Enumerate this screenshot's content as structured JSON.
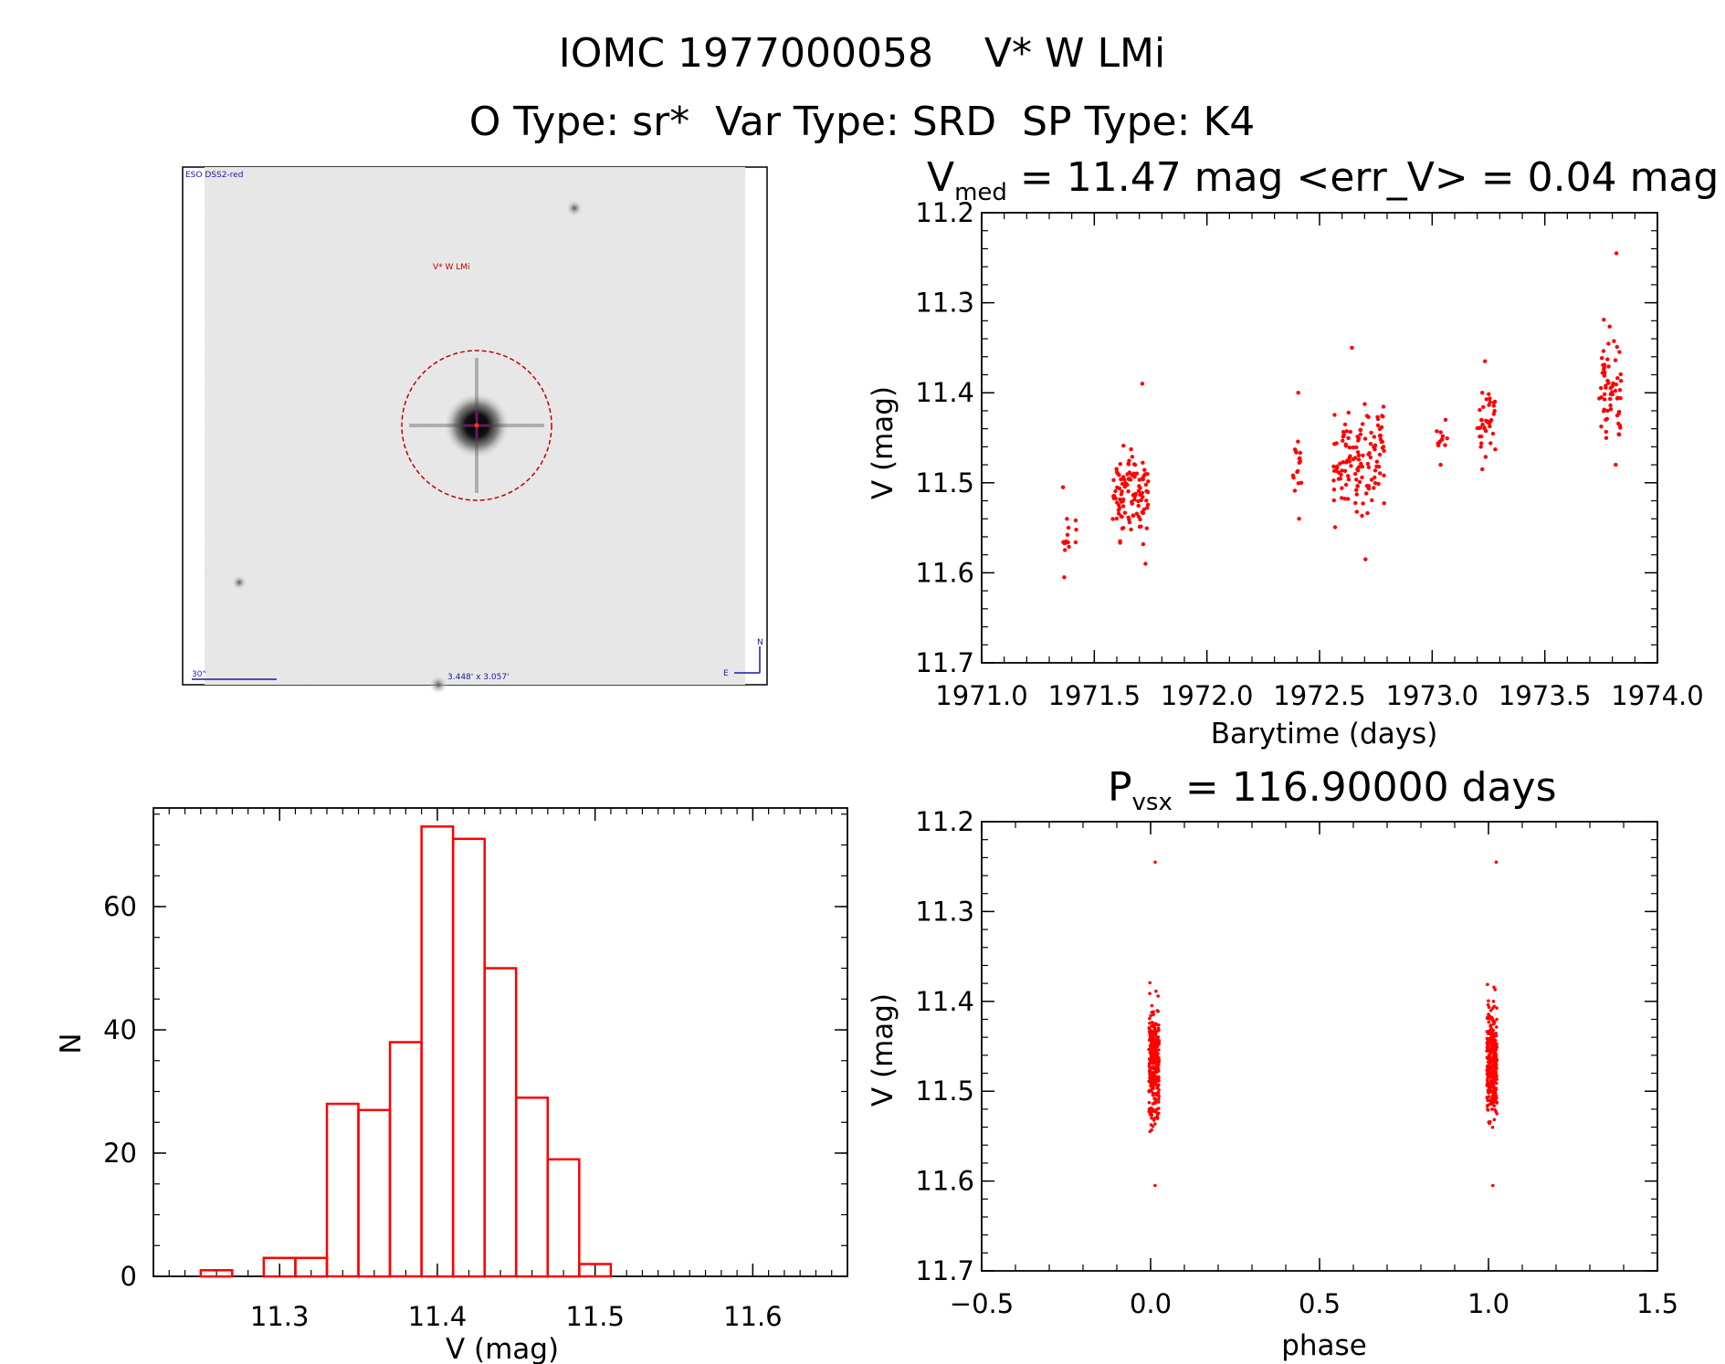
{
  "header": {
    "title": "IOMC 1977000058    V* W LMi",
    "subtitle": "O Type: sr*  Var Type: SRD  SP Type: K4"
  },
  "colors": {
    "data": "#ff0000",
    "axis": "#000000",
    "image_bg": "#eeeeee",
    "label_blue": "#1a1aa6"
  },
  "finder": {
    "survey_label": "ESO DSS2-red",
    "object_label": "V* W LMi",
    "scale_label": "30\"",
    "fov_label": "3.448' x 3.057'",
    "north_label": "N",
    "east_label": "E"
  },
  "chart_data": [
    {
      "id": "lightcurve",
      "type": "scatter",
      "title_prefix": "V",
      "title_sub": "med",
      "title_rest": " = 11.47 mag <err_V> = 0.04 mag",
      "xlabel": "Barytime (days)",
      "ylabel": "V (mag)",
      "xlim": [
        1971.0,
        1974.0
      ],
      "ylim": [
        11.7,
        11.2
      ],
      "xticks": [
        "1971.0",
        "1971.5",
        "1972.0",
        "1972.5",
        "1973.0",
        "1973.5",
        "1974.0"
      ],
      "yticks": [
        "11.2",
        "11.3",
        "11.4",
        "11.5",
        "11.6",
        "11.7"
      ],
      "groups": [
        {
          "x0": 1971.36,
          "x1": 1971.42,
          "ymin": 11.505,
          "ymax": 11.605,
          "ymid": 11.555,
          "n": 16
        },
        {
          "x0": 1971.58,
          "x1": 1971.74,
          "ymin": 11.39,
          "ymax": 11.59,
          "ymid": 11.51,
          "n": 110
        },
        {
          "x0": 1972.38,
          "x1": 1972.42,
          "ymin": 11.4,
          "ymax": 11.54,
          "ymid": 11.48,
          "n": 18
        },
        {
          "x0": 1972.56,
          "x1": 1972.79,
          "ymin": 11.35,
          "ymax": 11.585,
          "ymid": 11.48,
          "n": 130
        },
        {
          "x0": 1973.02,
          "x1": 1973.07,
          "ymin": 11.43,
          "ymax": 11.48,
          "ymid": 11.45,
          "n": 14
        },
        {
          "x0": 1973.2,
          "x1": 1973.28,
          "ymin": 11.365,
          "ymax": 11.485,
          "ymid": 11.43,
          "n": 40
        },
        {
          "x0": 1973.74,
          "x1": 1973.84,
          "ymin": 11.245,
          "ymax": 11.48,
          "ymid": 11.4,
          "n": 65
        }
      ]
    },
    {
      "id": "histogram",
      "type": "bar",
      "xlabel": "V (mag)",
      "ylabel": "N",
      "xlim": [
        11.22,
        11.66
      ],
      "ylim": [
        0,
        76
      ],
      "xticks": [
        "11.3",
        "11.4",
        "11.5",
        "11.6"
      ],
      "yticks": [
        "0",
        "20",
        "40",
        "60"
      ],
      "bin_width": 0.02,
      "bin_lefts": [
        11.25,
        11.27,
        11.29,
        11.31,
        11.33,
        11.35,
        11.37,
        11.39,
        11.41,
        11.43,
        11.45,
        11.47,
        11.49,
        11.51,
        11.53,
        11.55,
        11.57
      ],
      "counts": [
        1,
        0,
        3,
        3,
        28,
        27,
        38,
        73,
        71,
        50,
        29,
        19,
        2,
        0,
        0,
        0,
        0
      ]
    },
    {
      "id": "phased",
      "type": "scatter",
      "title_prefix": "P",
      "title_sub": "vsx",
      "title_rest": " = 116.90000 days",
      "xlabel": "phase",
      "ylabel": "V (mag)",
      "xlim": [
        -0.5,
        1.5
      ],
      "ylim": [
        11.7,
        11.2
      ],
      "xticks": [
        "−0.5",
        "0.0",
        "0.5",
        "1.0",
        "1.5"
      ],
      "yticks": [
        "11.2",
        "11.3",
        "11.4",
        "11.5",
        "11.6",
        "11.7"
      ],
      "columns": [
        {
          "phase": 0.01,
          "ymin": 11.245,
          "ymax": 11.605,
          "n": 300
        },
        {
          "phase": 1.01,
          "ymin": 11.245,
          "ymax": 11.605,
          "n": 300
        }
      ]
    }
  ]
}
